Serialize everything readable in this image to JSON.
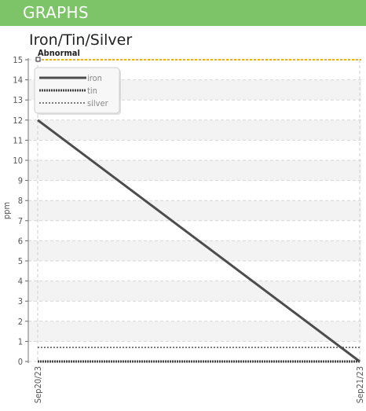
{
  "header": {
    "title": "GRAPHS"
  },
  "chart_data": {
    "type": "line",
    "title": "Iron/Tin/Silver",
    "xlabel": "",
    "ylabel": "ppm",
    "x": [
      "Sep20/23",
      "Sep21/23"
    ],
    "ylim": [
      0,
      15
    ],
    "yticks": [
      "0",
      "1",
      "2",
      "3",
      "4",
      "5",
      "6",
      "7",
      "8",
      "9",
      "10",
      "11",
      "12",
      "13",
      "14",
      "15"
    ],
    "grid": true,
    "legend_position": "top-left",
    "series": [
      {
        "name": "iron",
        "values": [
          12,
          0
        ],
        "color": "#4d4d4d",
        "style": "solid"
      },
      {
        "name": "tin",
        "values": [
          0,
          0
        ],
        "color": "#444444",
        "style": "dashed"
      },
      {
        "name": "silver",
        "values": [
          0.7,
          0.7
        ],
        "color": "#555555",
        "style": "dotted"
      }
    ],
    "annotations": [
      {
        "label": "Abnormal",
        "y": 15,
        "color": "#f0b400",
        "style": "dashed"
      }
    ]
  }
}
